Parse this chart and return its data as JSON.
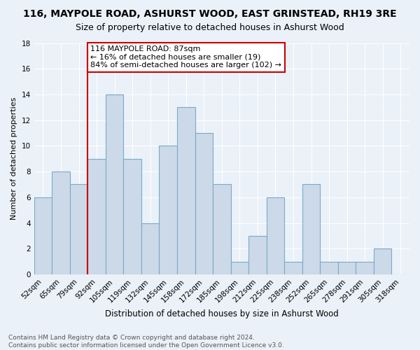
{
  "title": "116, MAYPOLE ROAD, ASHURST WOOD, EAST GRINSTEAD, RH19 3RE",
  "subtitle": "Size of property relative to detached houses in Ashurst Wood",
  "xlabel": "Distribution of detached houses by size in Ashurst Wood",
  "ylabel": "Number of detached properties",
  "categories": [
    "52sqm",
    "65sqm",
    "79sqm",
    "92sqm",
    "105sqm",
    "119sqm",
    "132sqm",
    "145sqm",
    "158sqm",
    "172sqm",
    "185sqm",
    "198sqm",
    "212sqm",
    "225sqm",
    "238sqm",
    "252sqm",
    "265sqm",
    "278sqm",
    "291sqm",
    "305sqm",
    "318sqm"
  ],
  "values": [
    6,
    8,
    7,
    9,
    14,
    9,
    4,
    10,
    13,
    11,
    7,
    1,
    3,
    6,
    1,
    7,
    1,
    1,
    1,
    2,
    0
  ],
  "bar_color": "#ccd9e8",
  "bar_edge_color": "#7aaac8",
  "vline_x_idx": 2.5,
  "vline_color": "#cc0000",
  "annotation_text": "116 MAYPOLE ROAD: 87sqm\n← 16% of detached houses are smaller (19)\n84% of semi-detached houses are larger (102) →",
  "annotation_box_color": "#ffffff",
  "annotation_box_edge": "#cc0000",
  "ylim": [
    0,
    18
  ],
  "yticks": [
    0,
    2,
    4,
    6,
    8,
    10,
    12,
    14,
    16,
    18
  ],
  "footer": "Contains HM Land Registry data © Crown copyright and database right 2024.\nContains public sector information licensed under the Open Government Licence v3.0.",
  "bg_color": "#eaf1f8",
  "plot_bg_color": "#eaf1f8",
  "title_fontsize": 10,
  "subtitle_fontsize": 9,
  "ylabel_fontsize": 8,
  "xlabel_fontsize": 8.5,
  "tick_fontsize": 7.5,
  "footer_fontsize": 6.5,
  "annotation_fontsize": 8
}
